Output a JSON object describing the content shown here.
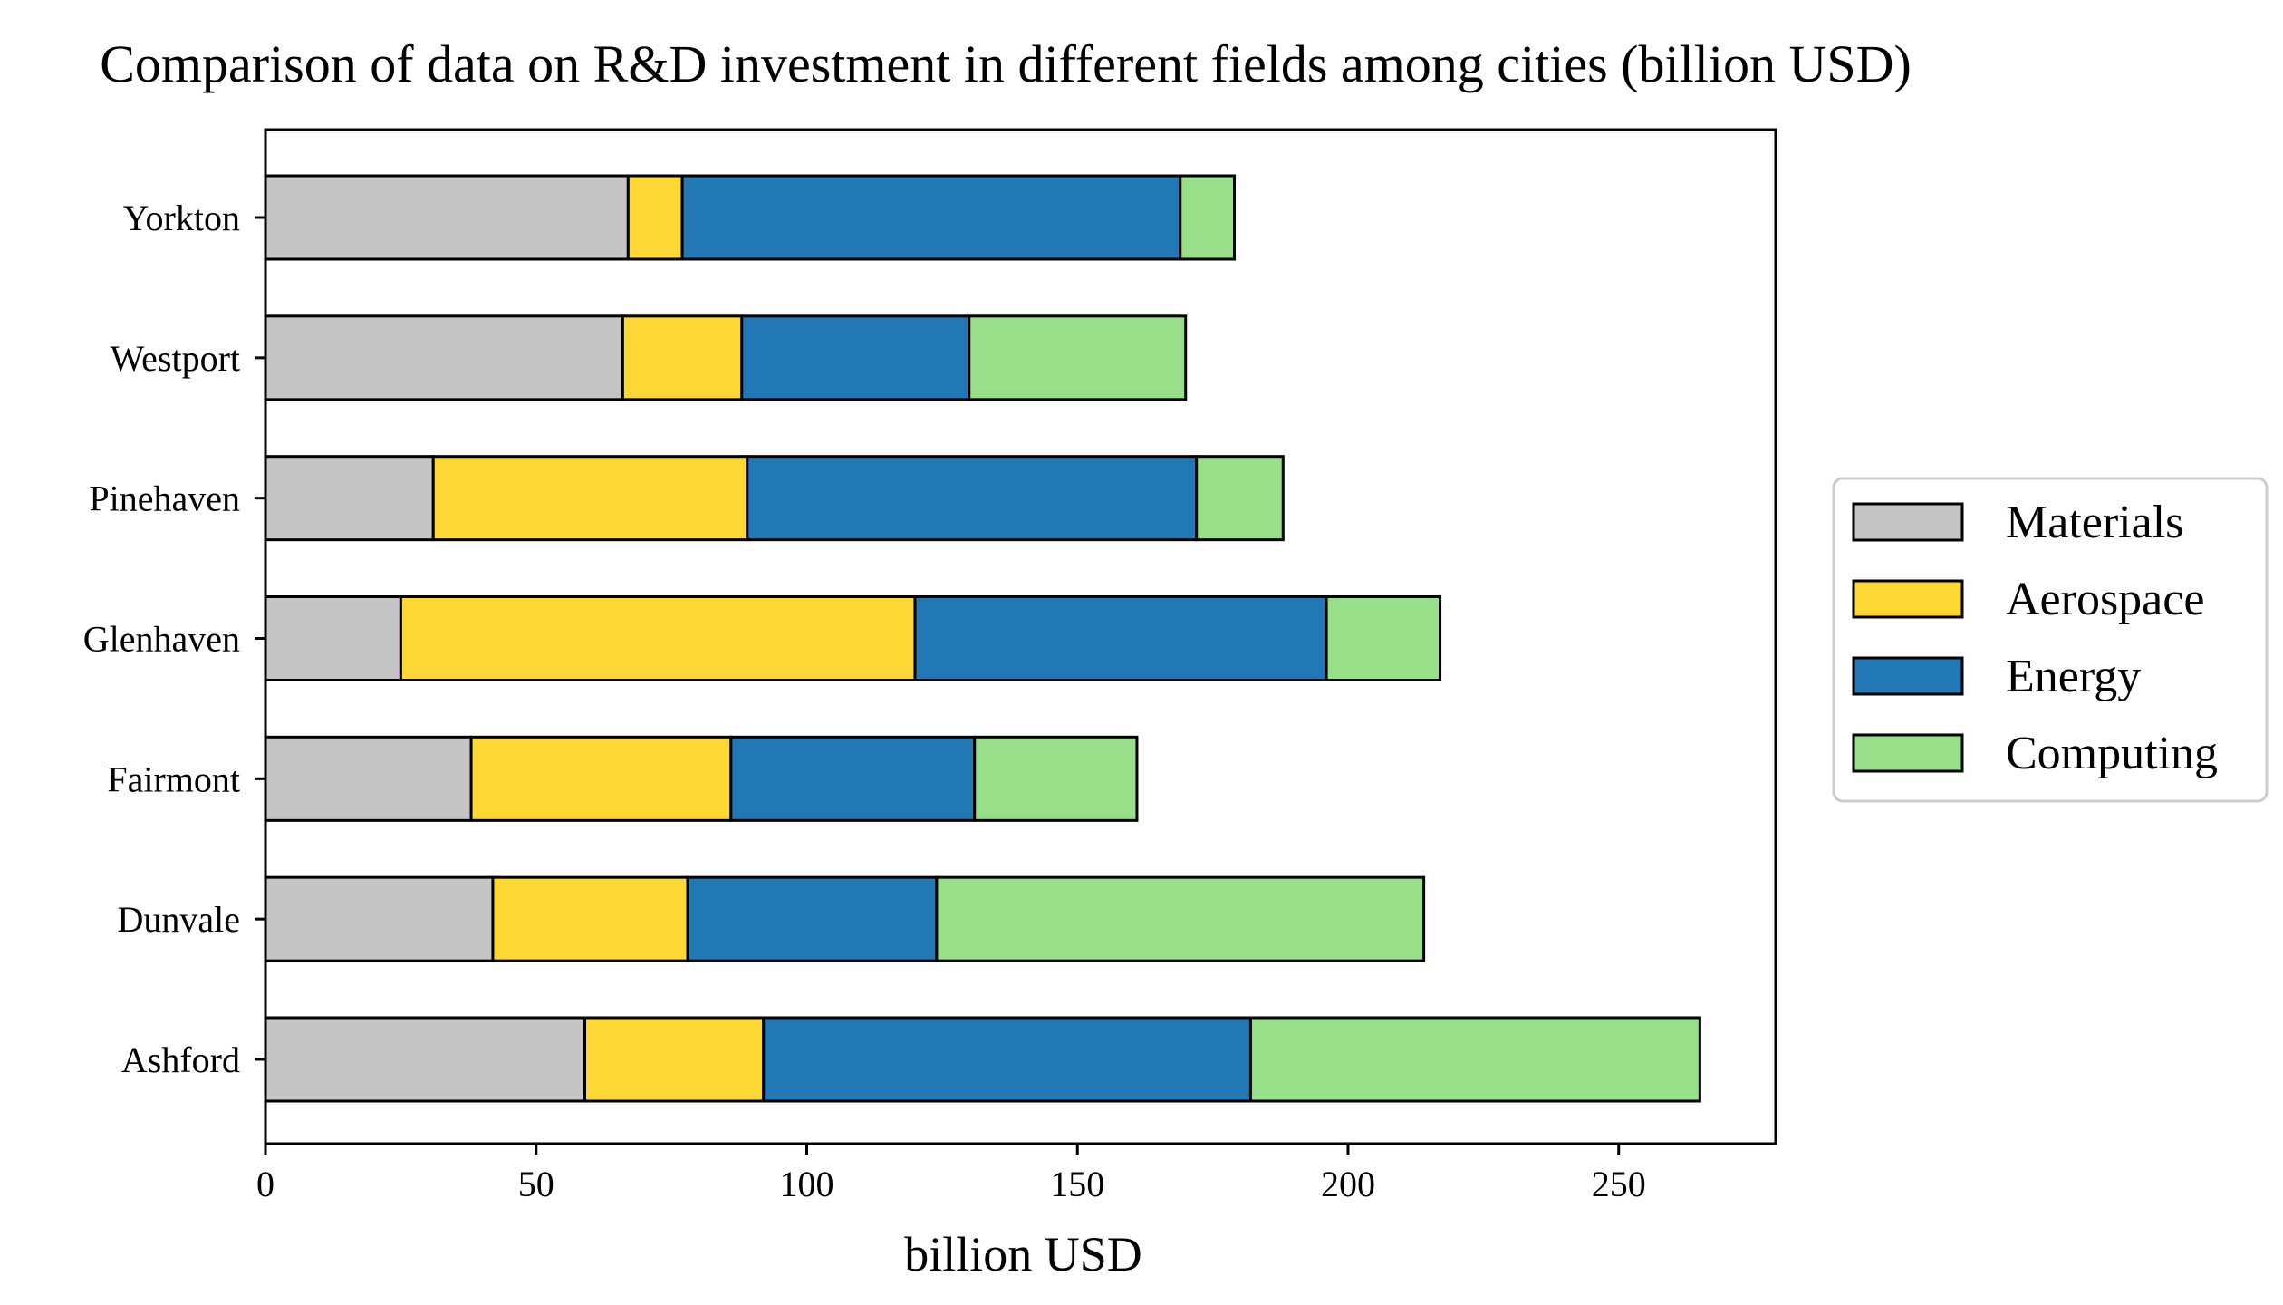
{
  "chart_data": {
    "type": "bar",
    "orientation": "horizontal",
    "stacked": true,
    "title": "Comparison of data on R&D investment in different fields among cities (billion USD)",
    "xlabel": "billion USD",
    "ylabel": "",
    "xlim": [
      0,
      279
    ],
    "xticks": [
      0,
      50,
      100,
      150,
      200,
      250
    ],
    "categories": [
      "Ashford",
      "Dunvale",
      "Fairmont",
      "Glenhaven",
      "Pinehaven",
      "Westport",
      "Yorkton"
    ],
    "series": [
      {
        "name": "Materials",
        "color": "#c5c5c5",
        "values": [
          59,
          42,
          38,
          25,
          31,
          66,
          67
        ]
      },
      {
        "name": "Aerospace",
        "color": "#fdd835",
        "values": [
          33,
          36,
          48,
          95,
          58,
          22,
          10
        ]
      },
      {
        "name": "Energy",
        "color": "#2178b4",
        "values": [
          90,
          46,
          45,
          76,
          83,
          42,
          92
        ]
      },
      {
        "name": "Computing",
        "color": "#98df8a",
        "values": [
          83,
          90,
          30,
          21,
          16,
          40,
          10
        ]
      }
    ],
    "legend_position": "right",
    "grid": false,
    "edge_color": "#000000"
  }
}
